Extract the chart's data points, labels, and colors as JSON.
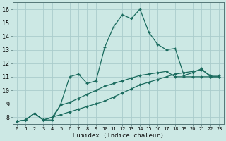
{
  "xlabel": "Humidex (Indice chaleur)",
  "background_color": "#cce8e4",
  "grid_color": "#aacccc",
  "line_color": "#1a6b5e",
  "xlim": [
    -0.5,
    23.5
  ],
  "ylim": [
    7.5,
    16.5
  ],
  "xticks": [
    0,
    1,
    2,
    3,
    4,
    5,
    6,
    7,
    8,
    9,
    10,
    11,
    12,
    13,
    14,
    15,
    16,
    17,
    18,
    19,
    20,
    21,
    22,
    23
  ],
  "yticks": [
    8,
    9,
    10,
    11,
    12,
    13,
    14,
    15,
    16
  ],
  "curve1_x": [
    0,
    1,
    2,
    3,
    4,
    5,
    6,
    7,
    8,
    9,
    10,
    11,
    12,
    13,
    14,
    15,
    16,
    17,
    18,
    19,
    20,
    21,
    22,
    23
  ],
  "curve1_y": [
    7.7,
    7.8,
    8.3,
    7.8,
    7.8,
    9.0,
    11.0,
    11.2,
    10.5,
    10.7,
    13.2,
    14.7,
    15.6,
    15.3,
    16.0,
    14.3,
    13.4,
    13.0,
    13.1,
    11.1,
    11.3,
    11.6,
    11.0,
    11.0
  ],
  "curve2_x": [
    0,
    1,
    2,
    3,
    4,
    5,
    6,
    7,
    8,
    9,
    10,
    11,
    12,
    13,
    14,
    15,
    16,
    17,
    18,
    19,
    20,
    21,
    22,
    23
  ],
  "curve2_y": [
    7.7,
    7.8,
    8.3,
    7.8,
    8.0,
    8.9,
    9.1,
    9.4,
    9.7,
    10.0,
    10.3,
    10.5,
    10.7,
    10.9,
    11.1,
    11.2,
    11.3,
    11.4,
    11.0,
    11.0,
    11.0,
    11.0,
    11.0,
    11.0
  ],
  "curve3_x": [
    0,
    1,
    2,
    3,
    4,
    5,
    6,
    7,
    8,
    9,
    10,
    11,
    12,
    13,
    14,
    15,
    16,
    17,
    18,
    19,
    20,
    21,
    22,
    23
  ],
  "curve3_y": [
    7.7,
    7.8,
    8.3,
    7.8,
    8.0,
    8.2,
    8.4,
    8.6,
    8.8,
    9.0,
    9.2,
    9.5,
    9.8,
    10.1,
    10.4,
    10.6,
    10.8,
    11.0,
    11.2,
    11.3,
    11.4,
    11.5,
    11.1,
    11.1
  ]
}
